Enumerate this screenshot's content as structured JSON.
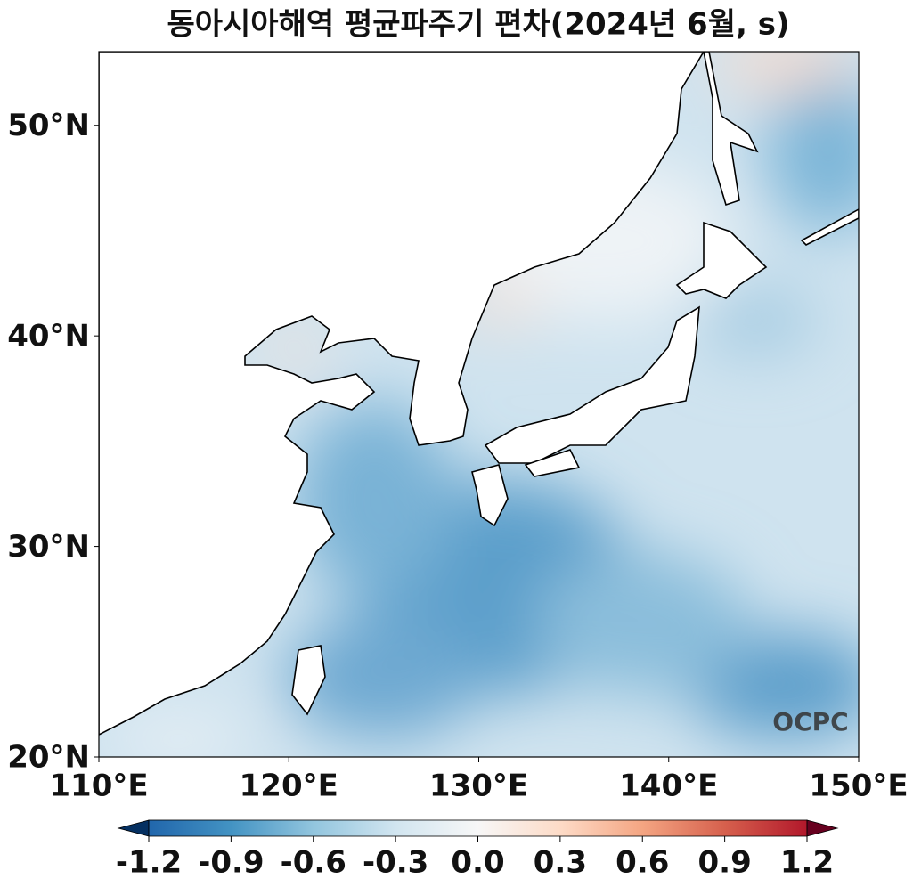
{
  "chart_data": {
    "type": "map",
    "title": "동아시아해역 평균파주기 편차(2024년 6월, s)",
    "xlim": [
      110,
      150
    ],
    "ylim": [
      20,
      53.5
    ],
    "xticks": [
      {
        "value": 110,
        "label": "110°E"
      },
      {
        "value": 120,
        "label": "120°E"
      },
      {
        "value": 130,
        "label": "130°E"
      },
      {
        "value": 140,
        "label": "140°E"
      },
      {
        "value": 150,
        "label": "150°E"
      }
    ],
    "yticks": [
      {
        "value": 20,
        "label": "20°N"
      },
      {
        "value": 30,
        "label": "30°N"
      },
      {
        "value": 40,
        "label": "40°N"
      },
      {
        "value": 50,
        "label": "50°N"
      }
    ],
    "colorbar": {
      "lim": [
        -1.2,
        1.2
      ],
      "ticks": [
        -1.2,
        -0.9,
        -0.6,
        -0.3,
        {
          "value": 0,
          "label": "0.0"
        },
        0.3,
        0.6,
        0.9,
        1.2
      ],
      "colors": [
        "#053061",
        "#2166ac",
        "#4393c3",
        "#92c5de",
        "#d1e5f0",
        "#f7f7f7",
        "#fddbc7",
        "#f4a582",
        "#d6604d",
        "#b2182b",
        "#67001f"
      ]
    },
    "watermark": "OCPC"
  }
}
